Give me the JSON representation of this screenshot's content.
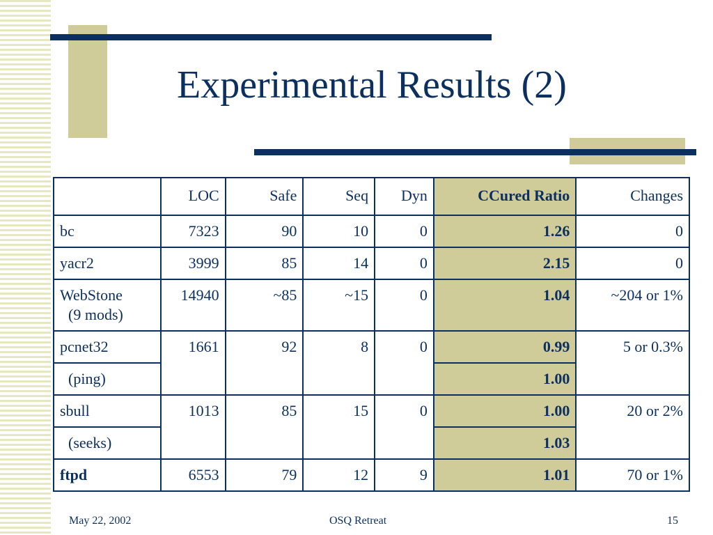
{
  "slide": {
    "title": "Experimental Results (2)"
  },
  "table": {
    "headers": [
      "",
      "LOC",
      "Safe",
      "Seq",
      "Dyn",
      "CCured Ratio",
      "Changes"
    ],
    "rows": {
      "bc": {
        "program": "bc",
        "loc": "7323",
        "safe": "90",
        "seq": "10",
        "dyn": "0",
        "ratio": "1.26",
        "changes": "0"
      },
      "yacr2": {
        "program": "yacr2",
        "loc": "3999",
        "safe": "85",
        "seq": "14",
        "dyn": "0",
        "ratio": "2.15",
        "changes": "0"
      },
      "webstone": {
        "program": "WebStone",
        "sub": "(9 mods)",
        "loc": "14940",
        "safe": "~85",
        "seq": "~15",
        "dyn": "0",
        "ratio": "1.04",
        "changes": "~204 or 1%"
      },
      "pcnet32": {
        "program": "pcnet32",
        "sub": "(ping)",
        "loc": "1661",
        "safe": "92",
        "seq": "8",
        "dyn": "0",
        "ratio": "0.99",
        "ratio_sub": "1.00",
        "changes": "5 or 0.3%"
      },
      "sbull": {
        "program": "sbull",
        "sub": "(seeks)",
        "loc": "1013",
        "safe": "85",
        "seq": "15",
        "dyn": "0",
        "ratio": "1.00",
        "ratio_sub": "1.03",
        "changes": "20 or 2%"
      },
      "ftpd": {
        "program": "ftpd",
        "loc": "6553",
        "safe": "79",
        "seq": "12",
        "dyn": "9",
        "ratio": "1.01",
        "changes": "70 or 1%"
      }
    }
  },
  "footer": {
    "date": "May 22, 2002",
    "event": "OSQ Retreat",
    "page": "15"
  },
  "colors": {
    "text": "#0b2f5e",
    "accent": "#cfcc99",
    "stripe": "#e7e7c4"
  }
}
